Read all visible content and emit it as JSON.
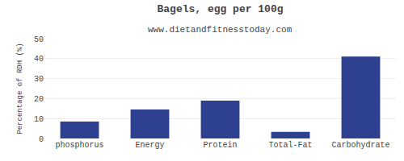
{
  "chart_data": {
    "type": "bar",
    "title": "Bagels, egg per 100g",
    "subtitle": "www.dietandfitnesstoday.com",
    "categories": [
      "phosphorus",
      "Energy",
      "Protein",
      "Total-Fat",
      "Carbohydrate"
    ],
    "values": [
      8.5,
      14.5,
      19.0,
      3.3,
      41.0
    ],
    "color": "#2e4090",
    "ylabel": "Percentage of RDH (%)",
    "ylim": [
      0,
      50
    ],
    "yticks": [
      0,
      10,
      20,
      30,
      40,
      50
    ],
    "grid": true
  }
}
